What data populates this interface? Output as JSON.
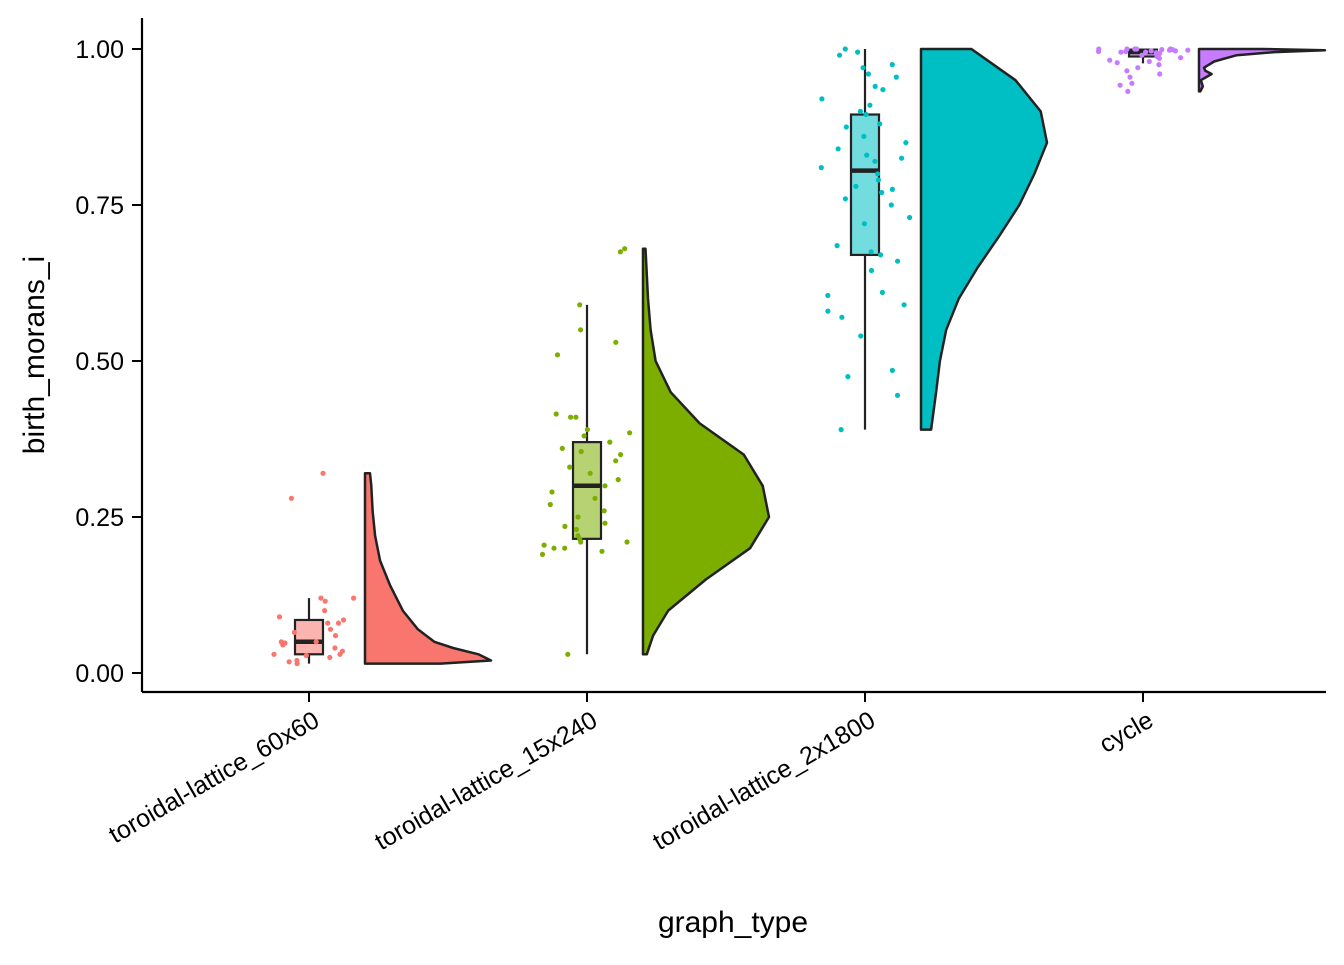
{
  "chart_data": {
    "type": "raincloud",
    "xlabel": "graph_type",
    "ylabel": "birth_morans_i",
    "ylim": [
      -0.03,
      1.05
    ],
    "yticks": [
      0.0,
      0.25,
      0.5,
      0.75,
      1.0
    ],
    "ytick_labels": [
      "0.00",
      "0.25",
      "0.50",
      "0.75",
      "1.00"
    ],
    "categories": [
      "toroidal-lattice_60x60",
      "toroidal-lattice_15x240",
      "toroidal-lattice_2x1800",
      "cycle"
    ],
    "colors": [
      "#F8766D",
      "#7CAE00",
      "#00BFC4",
      "#C77CFF"
    ],
    "grid": false,
    "legend": "none",
    "groups": [
      {
        "name": "toroidal-lattice_60x60",
        "box": {
          "min": 0.015,
          "q1": 0.03,
          "median": 0.05,
          "q3": 0.085,
          "max": 0.12
        },
        "points": [
          0.32,
          0.28,
          0.12,
          0.12,
          0.115,
          0.1,
          0.09,
          0.085,
          0.08,
          0.08,
          0.07,
          0.065,
          0.06,
          0.05,
          0.05,
          0.048,
          0.045,
          0.04,
          0.035,
          0.03,
          0.03,
          0.028,
          0.025,
          0.02,
          0.018,
          0.015
        ],
        "density": {
          "y": [
            0.015,
            0.02,
            0.03,
            0.04,
            0.05,
            0.07,
            0.1,
            0.14,
            0.18,
            0.22,
            0.26,
            0.3,
            0.32
          ],
          "d": [
            0.6,
            1.0,
            0.9,
            0.7,
            0.55,
            0.42,
            0.3,
            0.2,
            0.12,
            0.08,
            0.06,
            0.05,
            0.04
          ]
        }
      },
      {
        "name": "toroidal-lattice_15x240",
        "box": {
          "min": 0.03,
          "q1": 0.215,
          "median": 0.3,
          "q3": 0.37,
          "max": 0.59
        },
        "points": [
          0.68,
          0.675,
          0.59,
          0.55,
          0.53,
          0.51,
          0.415,
          0.41,
          0.41,
          0.39,
          0.385,
          0.38,
          0.37,
          0.36,
          0.355,
          0.35,
          0.34,
          0.33,
          0.32,
          0.31,
          0.3,
          0.29,
          0.28,
          0.27,
          0.26,
          0.25,
          0.24,
          0.235,
          0.23,
          0.22,
          0.215,
          0.21,
          0.21,
          0.205,
          0.2,
          0.2,
          0.195,
          0.19,
          0.03
        ],
        "density": {
          "y": [
            0.03,
            0.06,
            0.1,
            0.15,
            0.2,
            0.25,
            0.3,
            0.35,
            0.4,
            0.45,
            0.5,
            0.55,
            0.6,
            0.68
          ],
          "d": [
            0.03,
            0.08,
            0.2,
            0.5,
            0.85,
            1.0,
            0.95,
            0.8,
            0.45,
            0.22,
            0.1,
            0.06,
            0.04,
            0.02
          ]
        }
      },
      {
        "name": "toroidal-lattice_2x1800",
        "box": {
          "min": 0.39,
          "q1": 0.67,
          "median": 0.805,
          "q3": 0.895,
          "max": 1.0
        },
        "points": [
          1.0,
          0.995,
          0.99,
          0.975,
          0.97,
          0.96,
          0.955,
          0.94,
          0.935,
          0.92,
          0.91,
          0.9,
          0.895,
          0.88,
          0.875,
          0.86,
          0.85,
          0.84,
          0.83,
          0.825,
          0.82,
          0.81,
          0.8,
          0.79,
          0.78,
          0.775,
          0.77,
          0.76,
          0.75,
          0.73,
          0.72,
          0.685,
          0.675,
          0.67,
          0.66,
          0.645,
          0.61,
          0.605,
          0.59,
          0.58,
          0.57,
          0.54,
          0.485,
          0.475,
          0.445,
          0.39
        ],
        "density": {
          "y": [
            0.39,
            0.45,
            0.5,
            0.55,
            0.6,
            0.65,
            0.7,
            0.75,
            0.8,
            0.85,
            0.9,
            0.95,
            1.0
          ],
          "d": [
            0.08,
            0.12,
            0.15,
            0.2,
            0.3,
            0.45,
            0.62,
            0.78,
            0.9,
            1.0,
            0.95,
            0.75,
            0.4
          ]
        }
      },
      {
        "name": "cycle",
        "box": {
          "min": 0.977,
          "q1": 0.988,
          "median": 0.995,
          "q3": 0.999,
          "max": 1.0
        },
        "points": [
          1.0,
          1.0,
          1.0,
          1.0,
          1.0,
          0.999,
          0.999,
          0.998,
          0.998,
          0.997,
          0.997,
          0.996,
          0.996,
          0.995,
          0.995,
          0.994,
          0.993,
          0.992,
          0.99,
          0.988,
          0.986,
          0.985,
          0.982,
          0.98,
          0.978,
          0.975,
          0.97,
          0.965,
          0.96,
          0.955,
          0.945,
          0.942,
          0.932
        ],
        "density": {
          "y": [
            0.932,
            0.94,
            0.95,
            0.96,
            0.965,
            0.97,
            0.98,
            0.99,
            0.995,
            0.998,
            1.0
          ],
          "d": [
            0.01,
            0.03,
            0.015,
            0.1,
            0.05,
            0.04,
            0.12,
            0.3,
            0.6,
            1.0,
            0.5
          ]
        }
      }
    ]
  }
}
